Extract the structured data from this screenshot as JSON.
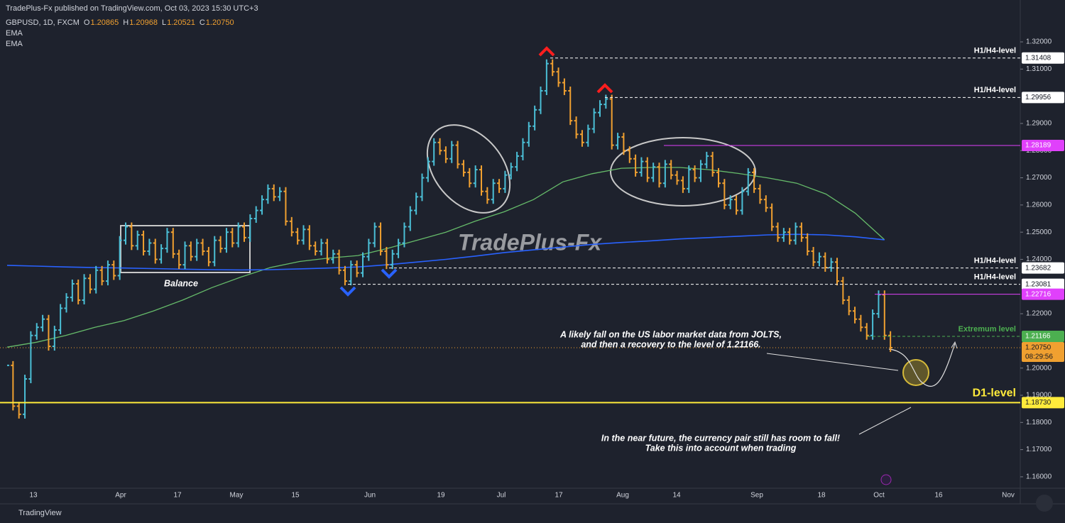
{
  "header": {
    "published": "TradePlus-Fx published on TradingView.com, Oct 03, 2023 15:30 UTC+3",
    "symbol": "GBPUSD, 1D, FXCM",
    "ohlc": [
      {
        "key": "O",
        "value": "1.20865"
      },
      {
        "key": "H",
        "value": "1.20968"
      },
      {
        "key": "L",
        "value": "1.20521"
      },
      {
        "key": "C",
        "value": "1.20750"
      }
    ],
    "indicators": [
      "EMA",
      "EMA"
    ]
  },
  "footer": {
    "brand": "TradingView"
  },
  "chart_data": {
    "type": "ohlc-bars",
    "watermark": "TradePlus-Fx",
    "box_label": "Balance",
    "ylim": [
      1.1558,
      1.3281
    ],
    "yticks": [
      {
        "value": 1.32,
        "label": "1.32000"
      },
      {
        "value": 1.31,
        "label": "1.31000"
      },
      {
        "value": 1.29,
        "label": "1.29000"
      },
      {
        "value": 1.28,
        "label": "1.28000"
      },
      {
        "value": 1.27,
        "label": "1.27000"
      },
      {
        "value": 1.26,
        "label": "1.26000"
      },
      {
        "value": 1.25,
        "label": "1.25000"
      },
      {
        "value": 1.24,
        "label": "1.24000"
      },
      {
        "value": 1.22,
        "label": "1.22000"
      },
      {
        "value": 1.2,
        "label": "1.20000"
      },
      {
        "value": 1.19,
        "label": "1.19000"
      },
      {
        "value": 1.18,
        "label": "1.18000"
      },
      {
        "value": 1.17,
        "label": "1.17000"
      },
      {
        "value": 1.16,
        "label": "1.16000"
      }
    ],
    "x_labels": [
      "13",
      "Apr",
      "17",
      "May",
      "15",
      "Jun",
      "19",
      "Jul",
      "17",
      "Aug",
      "14",
      "Sep",
      "18",
      "Oct",
      "16",
      "Nov"
    ],
    "up_color": "#4bbfd6",
    "down_color": "#f0a030",
    "close": [
      1.201,
      1.186,
      1.183,
      1.196,
      1.212,
      1.215,
      1.218,
      1.208,
      1.214,
      1.222,
      1.226,
      1.231,
      1.225,
      1.233,
      1.229,
      1.236,
      1.232,
      1.238,
      1.234,
      1.247,
      1.252,
      1.245,
      1.249,
      1.243,
      1.246,
      1.24,
      1.244,
      1.25,
      1.242,
      1.238,
      1.245,
      1.241,
      1.246,
      1.243,
      1.239,
      1.247,
      1.244,
      1.25,
      1.246,
      1.252,
      1.248,
      1.255,
      1.258,
      1.262,
      1.266,
      1.263,
      1.265,
      1.254,
      1.25,
      1.247,
      1.251,
      1.245,
      1.243,
      1.246,
      1.24,
      1.242,
      1.236,
      1.232,
      1.238,
      1.235,
      1.241,
      1.246,
      1.252,
      1.243,
      1.238,
      1.242,
      1.246,
      1.252,
      1.258,
      1.263,
      1.27,
      1.276,
      1.283,
      1.28,
      1.277,
      1.282,
      1.275,
      1.272,
      1.268,
      1.273,
      1.265,
      1.262,
      1.268,
      1.266,
      1.271,
      1.274,
      1.278,
      1.283,
      1.289,
      1.295,
      1.302,
      1.312,
      1.309,
      1.305,
      1.302,
      1.291,
      1.286,
      1.283,
      1.288,
      1.294,
      1.297,
      1.299,
      1.282,
      1.285,
      1.28,
      1.277,
      1.272,
      1.276,
      1.27,
      1.274,
      1.268,
      1.275,
      1.271,
      1.269,
      1.266,
      1.273,
      1.27,
      1.275,
      1.278,
      1.272,
      1.268,
      1.26,
      1.262,
      1.258,
      1.265,
      1.272,
      1.266,
      1.262,
      1.259,
      1.252,
      1.248,
      1.25,
      1.247,
      1.252,
      1.248,
      1.243,
      1.239,
      1.241,
      1.237,
      1.239,
      1.232,
      1.225,
      1.221,
      1.218,
      1.215,
      1.212,
      1.22,
      1.227,
      1.212,
      1.2075
    ],
    "series": [
      {
        "color": "#66bb6a",
        "values": [
          1.2077,
          1.2095,
          1.212,
          1.215,
          1.2175,
          1.221,
          1.225,
          1.2296,
          1.2335,
          1.237,
          1.2392,
          1.2405,
          1.2414,
          1.244,
          1.247,
          1.25,
          1.254,
          1.2575,
          1.262,
          1.2685,
          1.2715,
          1.2735,
          1.2738,
          1.2738,
          1.273,
          1.2716,
          1.27,
          1.268,
          1.264,
          1.257,
          1.2472
        ]
      },
      {
        "color": "#2962ff",
        "values": [
          1.2378,
          1.2375,
          1.2372,
          1.237,
          1.2368,
          1.2366,
          1.2364,
          1.2362,
          1.2361,
          1.2362,
          1.2365,
          1.2368,
          1.2372,
          1.238,
          1.239,
          1.24,
          1.2412,
          1.2425,
          1.2435,
          1.2445,
          1.2455,
          1.2462,
          1.2468,
          1.2475,
          1.248,
          1.2485,
          1.249,
          1.2492,
          1.249,
          1.2483,
          1.2472
        ]
      }
    ],
    "levels": [
      {
        "name": "H1/H4-level",
        "value": 1.31408,
        "color": "#ffffff",
        "style": "dashed"
      },
      {
        "name": "H1/H4-level",
        "value": 1.29956,
        "color": "#ffffff",
        "style": "dashed"
      },
      {
        "value": 1.28189,
        "color": "#e040fb",
        "style": "solid"
      },
      {
        "name": "H1/H4-level",
        "value": 1.23682,
        "color": "#ffffff",
        "style": "dashed"
      },
      {
        "name": "H1/H4-level",
        "value": 1.23081,
        "color": "#ffffff",
        "style": "dashed"
      },
      {
        "value": 1.22716,
        "color": "#e040fb",
        "style": "solid"
      },
      {
        "name": "Extremum  level",
        "value": 1.21166,
        "color": "#4caf50",
        "style": "dashed"
      },
      {
        "value": 1.2075,
        "value_label": "1.20750",
        "countdown": "08:29:56",
        "color": "#f0a030",
        "style": "dotted"
      },
      {
        "name": "D1-level",
        "value": 1.1873,
        "value_label": "1.18730",
        "color": "#ffeb3b",
        "style": "solid"
      }
    ],
    "annotations": [
      {
        "lines": [
          "A likely fall on the US labor market data from JOLTS,",
          "and then a recovery to the level of 1.21166."
        ]
      },
      {
        "lines": [
          "In the near future, the currency pair still has room to fall!",
          "Take this into account when trading"
        ]
      }
    ]
  }
}
